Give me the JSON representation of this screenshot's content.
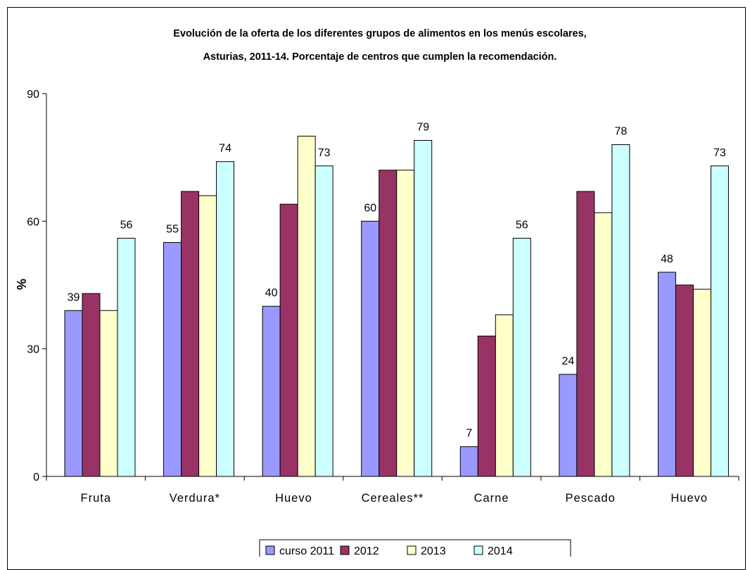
{
  "chart_data": {
    "type": "bar",
    "title_lines": [
      "Evolución de la oferta de los diferentes grupos de alimentos en los menús escolares,",
      "Asturias, 2011-14. Porcentaje de centros que cumplen la recomendación."
    ],
    "xlabel": "",
    "ylabel": "%",
    "ylim": [
      0,
      90
    ],
    "yticks": [
      0,
      30,
      60,
      90
    ],
    "categories": [
      "Fruta",
      "Verdura*",
      "Huevo",
      "Cereales**",
      "Carne",
      "Pescado",
      "Huevo"
    ],
    "series": [
      {
        "name": "curso 2011",
        "color": "#9999ff",
        "values": [
          39,
          55,
          40,
          60,
          7,
          24,
          48
        ]
      },
      {
        "name": "2012",
        "color": "#993366",
        "values": [
          43,
          67,
          64,
          72,
          33,
          67,
          45
        ]
      },
      {
        "name": "2013",
        "color": "#ffffcc",
        "values": [
          39,
          66,
          80,
          72,
          38,
          62,
          44
        ]
      },
      {
        "name": "2014",
        "color": "#ccffff",
        "values": [
          56,
          74,
          73,
          79,
          56,
          78,
          73
        ]
      }
    ],
    "data_labels": [
      {
        "category_index": 0,
        "series_index": 0,
        "text": "39"
      },
      {
        "category_index": 0,
        "series_index": 3,
        "text": "56"
      },
      {
        "category_index": 1,
        "series_index": 0,
        "text": "55"
      },
      {
        "category_index": 1,
        "series_index": 3,
        "text": "74"
      },
      {
        "category_index": 2,
        "series_index": 0,
        "text": "40"
      },
      {
        "category_index": 2,
        "series_index": 3,
        "text": "73"
      },
      {
        "category_index": 3,
        "series_index": 0,
        "text": "60"
      },
      {
        "category_index": 3,
        "series_index": 3,
        "text": "79"
      },
      {
        "category_index": 4,
        "series_index": 0,
        "text": "7"
      },
      {
        "category_index": 4,
        "series_index": 3,
        "text": "56"
      },
      {
        "category_index": 5,
        "series_index": 0,
        "text": "24"
      },
      {
        "category_index": 5,
        "series_index": 3,
        "text": "78"
      },
      {
        "category_index": 6,
        "series_index": 0,
        "text": "48"
      },
      {
        "category_index": 6,
        "series_index": 3,
        "text": "73"
      }
    ],
    "legend_position": "bottom",
    "grid": false
  }
}
